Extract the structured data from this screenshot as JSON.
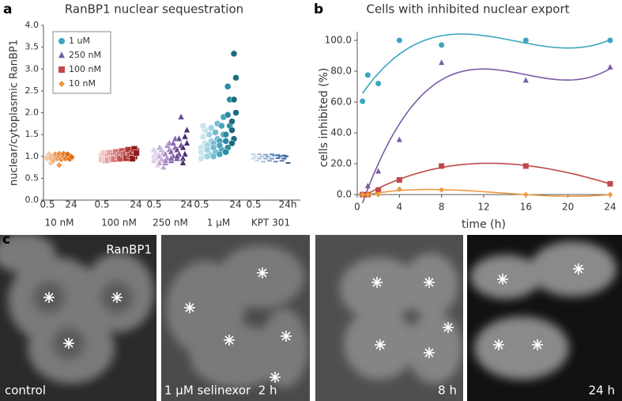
{
  "panel_labels": [
    "a",
    "b",
    "c"
  ],
  "chart_data": [
    {
      "type": "strip",
      "title": "RanBP1 nuclear sequestration",
      "y_label": "nuclear/cytoplasmic RanBP1",
      "ylim": [
        0,
        4
      ],
      "yticks": [
        {
          "value": 0,
          "label": "0.0"
        },
        {
          "value": 0.5,
          "label": "0.5"
        },
        {
          "value": 1,
          "label": "1.0"
        },
        {
          "value": 1.5,
          "label": "1.5"
        },
        {
          "value": 2,
          "label": "2.0"
        },
        {
          "value": 2.5,
          "label": "2.5"
        },
        {
          "value": 3,
          "label": "3.0"
        },
        {
          "value": 3.5,
          "label": "3.5"
        },
        {
          "value": 4,
          "label": "4.0"
        }
      ],
      "legend": [
        {
          "name": "1 uM",
          "color": "#3aa6c0",
          "marker": "circle"
        },
        {
          "name": "250 nM",
          "color": "#7a5aa6",
          "marker": "triangle"
        },
        {
          "name": "100 nM",
          "color": "#c04848",
          "marker": "square"
        },
        {
          "name": "10 nM",
          "color": "#ee9a40",
          "marker": "diamond"
        }
      ],
      "groups": [
        {
          "name": "10 nM",
          "marker": "diamond",
          "time_labels": [
            "0.5",
            "24"
          ],
          "colors": [
            "#f5c8a0",
            "#f2b27a",
            "#ef9a55",
            "#eb8a3a",
            "#e67a22",
            "#e06b10"
          ],
          "values": [
            [
              1.0,
              0.97,
              1.02,
              0.95,
              1.05,
              0.85
            ],
            [
              1.0,
              0.98,
              1.03,
              0.94,
              0.9,
              1.05
            ],
            [
              1.0,
              1.02,
              0.97,
              1.05,
              0.95,
              0.8
            ],
            [
              1.0,
              1.03,
              0.96,
              1.06,
              0.93,
              0.98
            ],
            [
              1.0,
              1.04,
              0.97,
              1.06,
              0.95,
              1.02
            ],
            [
              1.0,
              1.02,
              0.96,
              1.05,
              0.94,
              0.99
            ]
          ]
        },
        {
          "name": "100 nM",
          "marker": "square",
          "time_labels": [
            "0.5",
            "24"
          ],
          "colors": [
            "#f4c6c6",
            "#e9a0a0",
            "#d87676",
            "#c65050",
            "#b03434",
            "#8e1f1f"
          ],
          "values": [
            [
              1.0,
              0.96,
              1.04,
              0.93,
              1.07,
              0.9
            ],
            [
              1.0,
              0.97,
              1.05,
              0.92,
              1.08,
              0.95
            ],
            [
              1.02,
              0.98,
              1.06,
              0.94,
              1.1,
              1.0
            ],
            [
              1.03,
              0.99,
              1.08,
              0.95,
              1.12,
              1.05
            ],
            [
              1.05,
              1.0,
              1.1,
              0.96,
              1.15,
              1.02
            ],
            [
              1.05,
              1.0,
              1.12,
              0.95,
              1.17,
              1.08
            ]
          ]
        },
        {
          "name": "250 nM",
          "marker": "triangle",
          "time_labels": [
            "0.5",
            "24"
          ],
          "colors": [
            "#ddd0ea",
            "#c3acd9",
            "#a587c4",
            "#8665ad",
            "#6a4a94",
            "#4a2f73"
          ],
          "values": [
            [
              1.0,
              0.95,
              1.05,
              0.9,
              1.1,
              0.8,
              1.15
            ],
            [
              1.0,
              0.93,
              1.08,
              0.85,
              1.15,
              0.75,
              1.2
            ],
            [
              1.05,
              0.95,
              1.15,
              0.85,
              1.25,
              1.3,
              0.9
            ],
            [
              1.1,
              1.0,
              1.2,
              0.9,
              1.3,
              1.4,
              0.95
            ],
            [
              1.15,
              1.05,
              1.25,
              0.95,
              1.4,
              1.9,
              1.0
            ],
            [
              1.2,
              1.05,
              1.3,
              0.95,
              1.45,
              1.6,
              0.85
            ]
          ]
        },
        {
          "name": "1 µM",
          "marker": "circle",
          "time_labels": [
            "0.5",
            "24"
          ],
          "colors": [
            "#c8e6ef",
            "#9fd3e2",
            "#72bdd2",
            "#46a3bb",
            "#2a8aa3",
            "#1d6b80"
          ],
          "values": [
            [
              1.2,
              1.0,
              1.3,
              0.95,
              1.45,
              1.6,
              1.1,
              1.7
            ],
            [
              1.25,
              1.05,
              1.35,
              1.0,
              1.5,
              1.65,
              1.15
            ],
            [
              1.3,
              1.1,
              1.4,
              1.0,
              1.55,
              1.75,
              1.2
            ],
            [
              1.35,
              1.15,
              1.5,
              1.05,
              1.7,
              1.9,
              1.25
            ],
            [
              1.5,
              1.2,
              1.7,
              1.1,
              1.95,
              2.3,
              1.35,
              2.6
            ],
            [
              1.8,
              1.4,
              2.0,
              1.3,
              2.3,
              2.8,
              1.6,
              3.35
            ]
          ]
        },
        {
          "name": "KPT 301",
          "marker": "dash",
          "time_labels": [
            "0.5",
            "24h"
          ],
          "colors": [
            "#c8d6ea",
            "#a9bfde",
            "#8aa7d0",
            "#6d90c2",
            "#4f78b0",
            "#335e98"
          ],
          "values": [
            [
              0.95,
              1.0,
              0.9,
              1.05
            ],
            [
              0.95,
              1.0,
              0.88,
              1.05
            ],
            [
              0.95,
              1.0,
              0.9,
              1.04
            ],
            [
              0.95,
              1.02,
              0.88,
              1.05
            ],
            [
              0.96,
              1.0,
              0.9,
              1.03
            ],
            [
              0.95,
              1.0,
              0.85,
              1.02
            ]
          ]
        }
      ]
    },
    {
      "type": "scatter",
      "title": "Cells with inhibited nuclear export",
      "x_label": "time (h)",
      "y_label": "cells inhibited (%)",
      "x": [
        0.5,
        1,
        2,
        4,
        8,
        16,
        24
      ],
      "xlim": [
        0,
        24
      ],
      "xticks": [
        0,
        4,
        8,
        12,
        16,
        20,
        24
      ],
      "ylim": [
        0,
        100
      ],
      "yticks": [
        {
          "value": 0,
          "label": "0.0"
        },
        {
          "value": 20,
          "label": "20.0"
        },
        {
          "value": 40,
          "label": "40.0"
        },
        {
          "value": 60,
          "label": "60.0"
        },
        {
          "value": 80,
          "label": "80.0"
        },
        {
          "value": 100,
          "label": "100.0"
        }
      ],
      "trend": "cubic",
      "series": [
        {
          "name": "1 uM",
          "color": "#3aa6c0",
          "marker": "circle",
          "values": [
            60.5,
            77.5,
            72,
            100,
            97,
            100,
            100
          ]
        },
        {
          "name": "250 nM",
          "color": "#7a5aa6",
          "marker": "triangle",
          "values": [
            0,
            5.5,
            15,
            35.5,
            85.5,
            74,
            82.5
          ]
        },
        {
          "name": "100 nM",
          "color": "#c04848",
          "marker": "square",
          "values": [
            0,
            0,
            3,
            9.5,
            18.5,
            18.5,
            7
          ]
        },
        {
          "name": "10 nM",
          "color": "#ee9a40",
          "marker": "diamond",
          "values": [
            0,
            0,
            0,
            3.5,
            3,
            0,
            0
          ]
        }
      ]
    }
  ],
  "images": [
    {
      "labels": [
        "RanBP1",
        "control"
      ]
    },
    {
      "labels": [
        "1 µM selinexor  2 h"
      ]
    },
    {
      "labels": [
        "8 h"
      ]
    },
    {
      "labels": [
        "24 h"
      ]
    }
  ]
}
